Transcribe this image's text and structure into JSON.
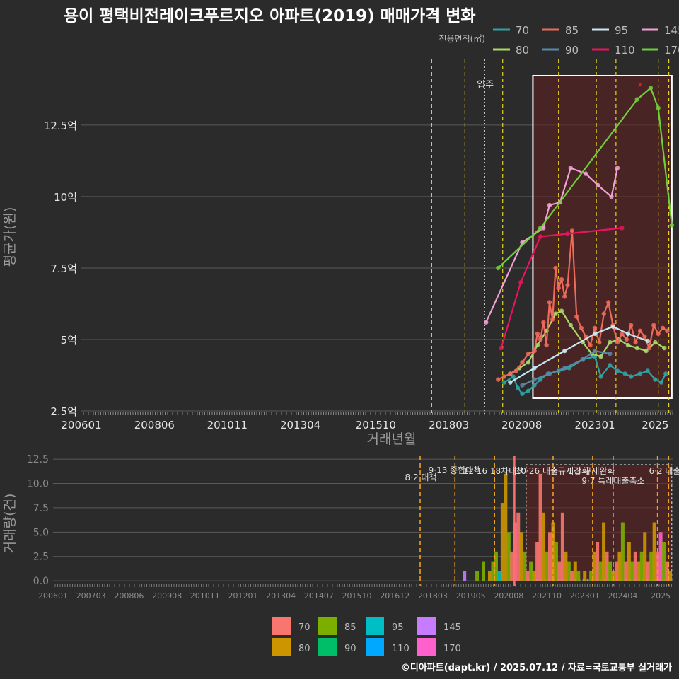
{
  "chart_data": {
    "type": "line",
    "title": "용이 평택비전레이크푸르지오 아파트(2019) 매매가격 변화",
    "footer": "©디아파트(dapt.kr) / 2025.07.12 / 자료=국토교통부 실거래가",
    "legend_title": "전용면적(㎡)",
    "top_panel": {
      "ylabel": "평균가(원)",
      "xlabel": "거래년월",
      "ylim": [
        2.4,
        14.8
      ],
      "yticks": [
        2.5,
        5,
        7.5,
        10,
        12.5
      ],
      "ytick_labels": [
        "2.5억",
        "5억",
        "7.5억",
        "10억",
        "12.5억"
      ],
      "xlim": [
        2006.0,
        2025.6
      ],
      "xticks": [
        2006.0,
        2008.42,
        2010.83,
        2013.25,
        2015.75,
        2018.17,
        2020.58,
        2023.0,
        2025.0
      ],
      "xtick_labels": [
        "200601",
        "200806",
        "201011",
        "201304",
        "201510",
        "201803",
        "202008",
        "202301",
        "2025"
      ],
      "move_in_label": "입주",
      "move_in_x": 2019.35,
      "highlight_range": [
        2020.95,
        2025.55
      ],
      "policy_lines": [
        2017.6,
        2018.7,
        2019.95,
        2021.8,
        2023.05,
        2023.7,
        2025.1,
        2025.45
      ],
      "series": [
        {
          "name": "70",
          "color": "#2fa3a3",
          "x": [
            2020.0,
            2020.3,
            2020.45,
            2020.6,
            2020.8,
            2021.0,
            2021.2,
            2021.45,
            2021.8,
            2022.15,
            2022.6,
            2023.0,
            2023.2,
            2023.5,
            2023.75,
            2024.0,
            2024.2,
            2024.5,
            2024.75,
            2025.0,
            2025.2,
            2025.35
          ],
          "y": [
            3.5,
            3.7,
            3.3,
            3.1,
            3.2,
            3.4,
            3.6,
            3.8,
            3.9,
            4.0,
            4.3,
            4.4,
            3.7,
            4.1,
            3.9,
            3.8,
            3.7,
            3.8,
            3.9,
            3.6,
            3.5,
            3.8
          ]
        },
        {
          "name": "80",
          "color": "#a8d86a",
          "x": [
            2020.2,
            2020.5,
            2020.8,
            2021.1,
            2021.4,
            2021.7,
            2021.9,
            2022.2,
            2022.6,
            2022.9,
            2023.2,
            2023.5,
            2023.8,
            2024.1,
            2024.4,
            2024.7,
            2025.0,
            2025.3
          ],
          "y": [
            3.8,
            4.0,
            4.2,
            4.8,
            5.3,
            5.9,
            6.0,
            5.5,
            4.9,
            4.5,
            4.4,
            4.9,
            5.0,
            4.8,
            4.7,
            4.6,
            4.9,
            4.7
          ]
        },
        {
          "name": "85",
          "color": "#ee6b5b",
          "x": [
            2019.8,
            2020.0,
            2020.2,
            2020.4,
            2020.6,
            2020.8,
            2021.0,
            2021.1,
            2021.2,
            2021.3,
            2021.4,
            2021.5,
            2021.6,
            2021.7,
            2021.8,
            2021.9,
            2022.0,
            2022.1,
            2022.25,
            2022.4,
            2022.55,
            2022.7,
            2022.85,
            2023.0,
            2023.15,
            2023.3,
            2023.45,
            2023.6,
            2023.75,
            2023.9,
            2024.05,
            2024.2,
            2024.35,
            2024.5,
            2024.65,
            2024.8,
            2024.95,
            2025.1,
            2025.25,
            2025.4
          ],
          "y": [
            3.6,
            3.7,
            3.8,
            3.9,
            4.2,
            4.5,
            4.6,
            5.2,
            5.0,
            5.6,
            4.8,
            6.3,
            5.7,
            7.5,
            6.8,
            7.1,
            6.5,
            6.9,
            8.8,
            5.8,
            5.4,
            5.1,
            4.8,
            5.4,
            4.9,
            5.9,
            6.3,
            5.5,
            4.9,
            5.2,
            5.0,
            5.5,
            4.9,
            5.3,
            5.1,
            4.7,
            5.5,
            5.2,
            5.4,
            5.3
          ]
        },
        {
          "name": "90",
          "color": "#5a88a8",
          "x": [
            2020.6,
            2021.0,
            2021.5,
            2022.0,
            2022.6,
            2023.0,
            2023.5
          ],
          "y": [
            3.4,
            3.6,
            3.8,
            4.0,
            4.3,
            4.6,
            4.5
          ]
        },
        {
          "name": "95",
          "color": "#c9e9f2",
          "x": [
            2020.2,
            2021.0,
            2022.0,
            2023.0,
            2023.6,
            2024.1,
            2024.75
          ],
          "y": [
            3.5,
            4.0,
            4.6,
            5.2,
            5.45,
            5.2,
            4.95
          ]
        },
        {
          "name": "110",
          "color": "#e8145c",
          "x": [
            2019.9,
            2020.55,
            2021.2,
            2022.1,
            2023.9
          ],
          "y": [
            4.7,
            7.0,
            8.6,
            8.7,
            8.9
          ]
        },
        {
          "name": "145",
          "color": "#f0a2d6",
          "x": [
            2019.4,
            2020.6,
            2021.3,
            2021.5,
            2021.85,
            2022.2,
            2022.7,
            2023.1,
            2023.55,
            2023.75
          ],
          "y": [
            5.6,
            8.4,
            8.9,
            9.7,
            9.8,
            11.0,
            10.8,
            10.4,
            10.0,
            11.0
          ]
        },
        {
          "name": "170",
          "color": "#6fcf3a",
          "x": [
            2019.8,
            2021.2,
            2024.4,
            2024.85,
            2025.1,
            2025.55
          ],
          "y": [
            7.5,
            8.9,
            13.4,
            13.8,
            13.1,
            9.0
          ]
        }
      ]
    },
    "bottom_panel": {
      "ylabel": "거래량(건)",
      "ylim": [
        -0.5,
        12.8
      ],
      "yticks": [
        0.0,
        2.5,
        5.0,
        7.5,
        10.0,
        12.5
      ],
      "ytick_labels": [
        "0.0",
        "2.5",
        "5.0",
        "7.5",
        "10.0",
        "12.5"
      ],
      "xtick_labels": [
        "200601",
        "200703",
        "200806",
        "200908",
        "201011",
        "201201",
        "201304",
        "201407",
        "201510",
        "201612",
        "201803",
        "201905",
        "202008",
        "202110",
        "202301",
        "202404",
        "2025"
      ],
      "policy_labels": [
        "8·2 대책",
        "9·13 종합대책",
        "12·16 18차대책",
        "10·26 대출규제강화",
        "1·3 규제완화",
        "9·7 특례대출축소",
        "6·2 대출"
      ],
      "legend": [
        {
          "name": "70",
          "color": "#f8766d"
        },
        {
          "name": "80",
          "color": "#cd9600"
        },
        {
          "name": "85",
          "color": "#7cae00"
        },
        {
          "name": "90",
          "color": "#00be67"
        },
        {
          "name": "95",
          "color": "#00bfc4"
        },
        {
          "name": "110",
          "color": "#00a9ff"
        },
        {
          "name": "145",
          "color": "#c77cff"
        },
        {
          "name": "170",
          "color": "#ff61cc"
        }
      ],
      "volumes": [
        {
          "x": 2019.0,
          "v": 1,
          "s": "145"
        },
        {
          "x": 2019.4,
          "v": 1,
          "s": "85"
        },
        {
          "x": 2019.6,
          "v": 2,
          "s": "85"
        },
        {
          "x": 2019.8,
          "v": 1,
          "s": "80"
        },
        {
          "x": 2019.9,
          "v": 2,
          "s": "85"
        },
        {
          "x": 2020.0,
          "v": 3,
          "s": "85"
        },
        {
          "x": 2020.1,
          "v": 1,
          "s": "95"
        },
        {
          "x": 2020.2,
          "v": 8,
          "s": "80"
        },
        {
          "x": 2020.3,
          "v": 11,
          "s": "80"
        },
        {
          "x": 2020.4,
          "v": 5,
          "s": "85"
        },
        {
          "x": 2020.5,
          "v": 3,
          "s": "70"
        },
        {
          "x": 2020.6,
          "v": 6,
          "s": "170"
        },
        {
          "x": 2020.7,
          "v": 7,
          "s": "70"
        },
        {
          "x": 2020.8,
          "v": 5,
          "s": "80"
        },
        {
          "x": 2020.9,
          "v": 3,
          "s": "85"
        },
        {
          "x": 2021.0,
          "v": 1,
          "s": "70"
        },
        {
          "x": 2021.1,
          "v": 2,
          "s": "85"
        },
        {
          "x": 2021.2,
          "v": 1,
          "s": "80"
        },
        {
          "x": 2021.3,
          "v": 4,
          "s": "70"
        },
        {
          "x": 2021.4,
          "v": 11,
          "s": "70"
        },
        {
          "x": 2021.5,
          "v": 7,
          "s": "80"
        },
        {
          "x": 2021.6,
          "v": 3,
          "s": "85"
        },
        {
          "x": 2021.7,
          "v": 5,
          "s": "70"
        },
        {
          "x": 2021.8,
          "v": 6,
          "s": "80"
        },
        {
          "x": 2021.9,
          "v": 4,
          "s": "85"
        },
        {
          "x": 2022.0,
          "v": 2,
          "s": "70"
        },
        {
          "x": 2022.1,
          "v": 7,
          "s": "70"
        },
        {
          "x": 2022.2,
          "v": 3,
          "s": "80"
        },
        {
          "x": 2022.3,
          "v": 2,
          "s": "85"
        },
        {
          "x": 2022.4,
          "v": 1,
          "s": "70"
        },
        {
          "x": 2022.5,
          "v": 2,
          "s": "80"
        },
        {
          "x": 2022.6,
          "v": 1,
          "s": "85"
        },
        {
          "x": 2022.8,
          "v": 1,
          "s": "80"
        },
        {
          "x": 2023.0,
          "v": 1,
          "s": "85"
        },
        {
          "x": 2023.1,
          "v": 3,
          "s": "80"
        },
        {
          "x": 2023.2,
          "v": 4,
          "s": "70"
        },
        {
          "x": 2023.3,
          "v": 2,
          "s": "85"
        },
        {
          "x": 2023.4,
          "v": 6,
          "s": "80"
        },
        {
          "x": 2023.5,
          "v": 3,
          "s": "70"
        },
        {
          "x": 2023.6,
          "v": 2,
          "s": "85"
        },
        {
          "x": 2023.7,
          "v": 1,
          "s": "80"
        },
        {
          "x": 2023.8,
          "v": 2,
          "s": "70"
        },
        {
          "x": 2023.9,
          "v": 3,
          "s": "80"
        },
        {
          "x": 2024.0,
          "v": 6,
          "s": "85"
        },
        {
          "x": 2024.1,
          "v": 2,
          "s": "70"
        },
        {
          "x": 2024.2,
          "v": 4,
          "s": "80"
        },
        {
          "x": 2024.3,
          "v": 2,
          "s": "85"
        },
        {
          "x": 2024.4,
          "v": 3,
          "s": "70"
        },
        {
          "x": 2024.5,
          "v": 2,
          "s": "80"
        },
        {
          "x": 2024.6,
          "v": 3,
          "s": "85"
        },
        {
          "x": 2024.7,
          "v": 5,
          "s": "80"
        },
        {
          "x": 2024.8,
          "v": 2,
          "s": "70"
        },
        {
          "x": 2024.9,
          "v": 3,
          "s": "85"
        },
        {
          "x": 2025.0,
          "v": 6,
          "s": "80"
        },
        {
          "x": 2025.1,
          "v": 3,
          "s": "70"
        },
        {
          "x": 2025.2,
          "v": 5,
          "s": "170"
        },
        {
          "x": 2025.3,
          "v": 4,
          "s": "85"
        },
        {
          "x": 2025.4,
          "v": 2,
          "s": "70"
        },
        {
          "x": 2025.5,
          "v": 1,
          "s": "80"
        }
      ]
    }
  }
}
